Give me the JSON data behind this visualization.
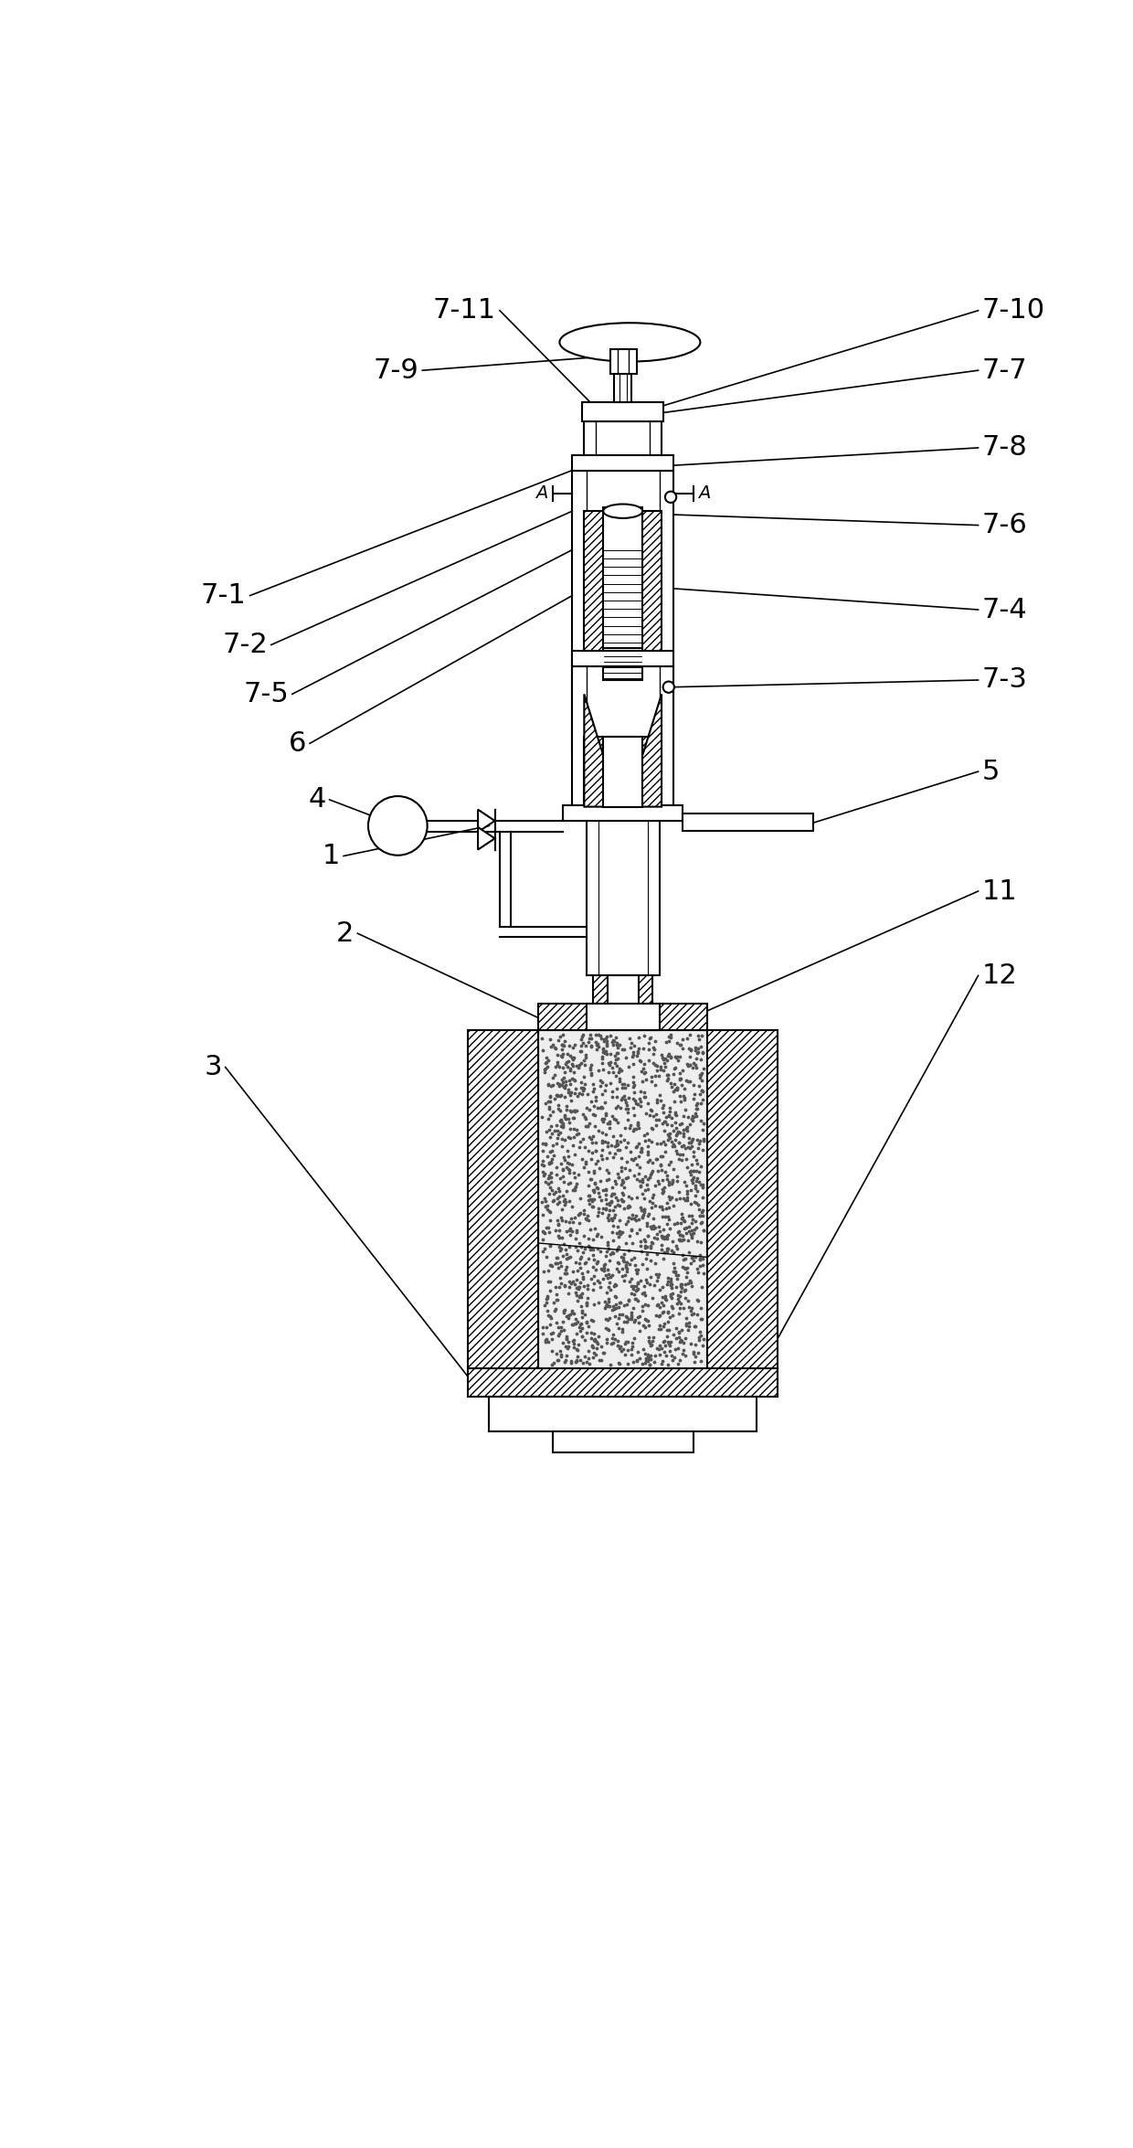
{
  "bg_color": "#ffffff",
  "line_color": "#000000",
  "figsize": [
    12.4,
    23.5
  ],
  "dpi": 100
}
